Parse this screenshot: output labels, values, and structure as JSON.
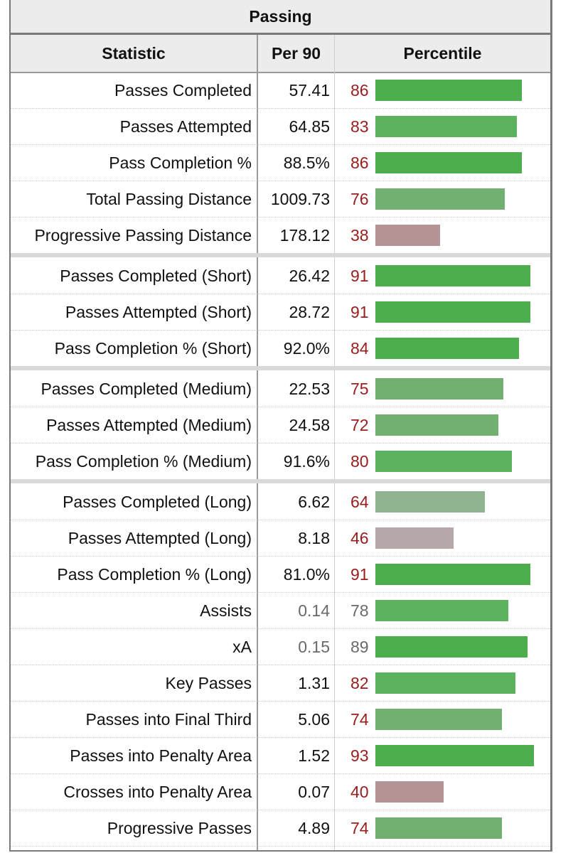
{
  "table": {
    "title": "Passing",
    "headers": {
      "statistic": "Statistic",
      "per90": "Per 90",
      "percentile": "Percentile"
    },
    "percentile_max": 100,
    "colors": {
      "high": "#4cae4c",
      "mid": "#8fb48f",
      "low": "#b89c9c",
      "percentile_text": "#9b1c1c",
      "muted_text": "#6a6a6a"
    },
    "groups": [
      {
        "rows": [
          {
            "stat": "Passes Completed",
            "per90": "57.41",
            "percentile": 86
          },
          {
            "stat": "Passes Attempted",
            "per90": "64.85",
            "percentile": 83
          },
          {
            "stat": "Pass Completion %",
            "per90": "88.5%",
            "percentile": 86
          },
          {
            "stat": "Total Passing Distance",
            "per90": "1009.73",
            "percentile": 76
          },
          {
            "stat": "Progressive Passing Distance",
            "per90": "178.12",
            "percentile": 38
          }
        ]
      },
      {
        "rows": [
          {
            "stat": "Passes Completed (Short)",
            "per90": "26.42",
            "percentile": 91
          },
          {
            "stat": "Passes Attempted (Short)",
            "per90": "28.72",
            "percentile": 91
          },
          {
            "stat": "Pass Completion % (Short)",
            "per90": "92.0%",
            "percentile": 84
          }
        ]
      },
      {
        "rows": [
          {
            "stat": "Passes Completed (Medium)",
            "per90": "22.53",
            "percentile": 75
          },
          {
            "stat": "Passes Attempted (Medium)",
            "per90": "24.58",
            "percentile": 72
          },
          {
            "stat": "Pass Completion % (Medium)",
            "per90": "91.6%",
            "percentile": 80
          }
        ]
      },
      {
        "rows": [
          {
            "stat": "Passes Completed (Long)",
            "per90": "6.62",
            "percentile": 64
          },
          {
            "stat": "Passes Attempted (Long)",
            "per90": "8.18",
            "percentile": 46
          },
          {
            "stat": "Pass Completion % (Long)",
            "per90": "81.0%",
            "percentile": 91
          },
          {
            "stat": "Assists",
            "per90": "0.14",
            "percentile": 78,
            "muted": true
          },
          {
            "stat": "xA",
            "per90": "0.15",
            "percentile": 89,
            "muted": true
          },
          {
            "stat": "Key Passes",
            "per90": "1.31",
            "percentile": 82
          },
          {
            "stat": "Passes into Final Third",
            "per90": "5.06",
            "percentile": 74
          },
          {
            "stat": "Passes into Penalty Area",
            "per90": "1.52",
            "percentile": 93
          },
          {
            "stat": "Crosses into Penalty Area",
            "per90": "0.07",
            "percentile": 40
          },
          {
            "stat": "Progressive Passes",
            "per90": "4.89",
            "percentile": 74
          }
        ]
      }
    ]
  },
  "chart_data": {
    "type": "bar",
    "title": "Passing",
    "xlabel": "Percentile",
    "ylabel": "",
    "xlim": [
      0,
      100
    ],
    "categories": [
      "Passes Completed",
      "Passes Attempted",
      "Pass Completion %",
      "Total Passing Distance",
      "Progressive Passing Distance",
      "Passes Completed (Short)",
      "Passes Attempted (Short)",
      "Pass Completion % (Short)",
      "Passes Completed (Medium)",
      "Passes Attempted (Medium)",
      "Pass Completion % (Medium)",
      "Passes Completed (Long)",
      "Passes Attempted (Long)",
      "Pass Completion % (Long)",
      "Assists",
      "xA",
      "Key Passes",
      "Passes into Final Third",
      "Passes into Penalty Area",
      "Crosses into Penalty Area",
      "Progressive Passes"
    ],
    "values": [
      86,
      83,
      86,
      76,
      38,
      91,
      91,
      84,
      75,
      72,
      80,
      64,
      46,
      91,
      78,
      89,
      82,
      74,
      93,
      40,
      74
    ],
    "per90": [
      "57.41",
      "64.85",
      "88.5%",
      "1009.73",
      "178.12",
      "26.42",
      "28.72",
      "92.0%",
      "22.53",
      "24.58",
      "91.6%",
      "6.62",
      "8.18",
      "81.0%",
      "0.14",
      "0.15",
      "1.31",
      "5.06",
      "1.52",
      "0.07",
      "4.89"
    ],
    "grid": false,
    "orientation": "horizontal"
  }
}
